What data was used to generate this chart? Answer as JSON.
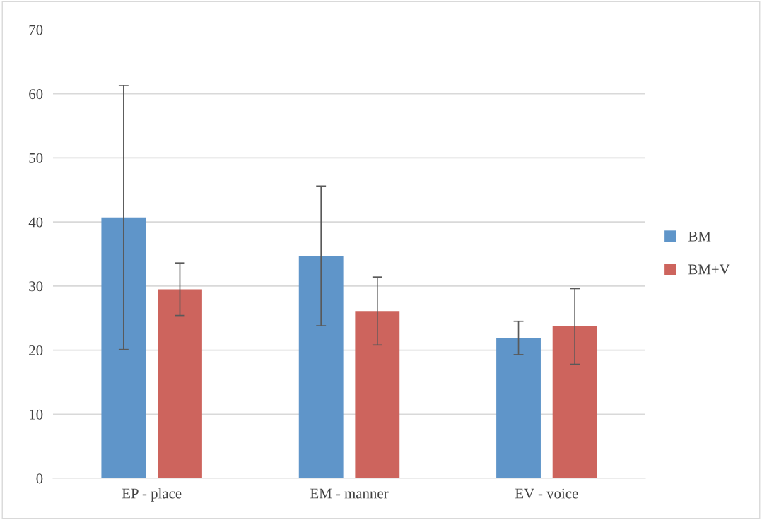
{
  "chart_data": {
    "type": "bar",
    "categories": [
      "EP - place",
      "EM - manner",
      "EV - voice"
    ],
    "series": [
      {
        "name": "BM",
        "color": "#5f95c9",
        "values": [
          40.7,
          34.7,
          21.9
        ],
        "errors": [
          20.6,
          10.9,
          2.6
        ]
      },
      {
        "name": "BM+V",
        "color": "#cd645d",
        "values": [
          29.5,
          26.1,
          23.7
        ],
        "errors": [
          4.1,
          5.3,
          5.9
        ]
      }
    ],
    "ylim": [
      0,
      70
    ],
    "yticks": [
      0,
      10,
      20,
      30,
      40,
      50,
      60,
      70
    ],
    "grid": "y",
    "legend": "right"
  }
}
